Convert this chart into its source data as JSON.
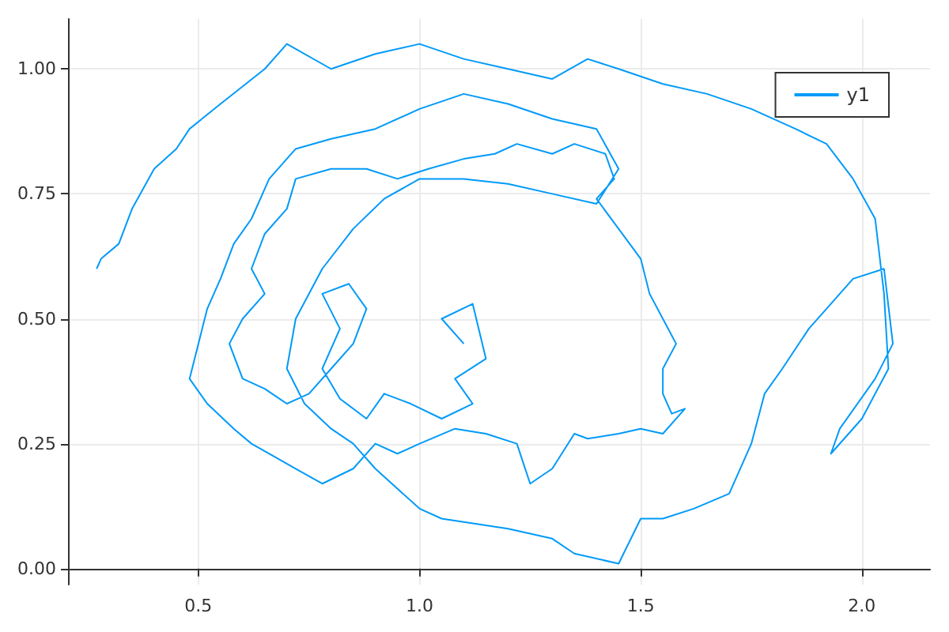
{
  "chart_data": {
    "type": "line",
    "grid": true,
    "legend": "top right",
    "marker": "none",
    "line_style": "solid",
    "xlim": [
      0.207,
      2.154
    ],
    "ylim": [
      -0.032,
      1.1
    ],
    "xticks": [
      {
        "value": 0.5,
        "label": "0.5"
      },
      {
        "value": 1,
        "label": "1.0"
      },
      {
        "value": 1.5,
        "label": "1.5"
      },
      {
        "value": 2,
        "label": "2.0"
      }
    ],
    "yticks": [
      {
        "value": 0,
        "label": "0.00"
      },
      {
        "value": 0.25,
        "label": "0.25"
      },
      {
        "value": 0.5,
        "label": "0.50"
      },
      {
        "value": 0.75,
        "label": "0.75"
      },
      {
        "value": 1,
        "label": "1.00"
      }
    ],
    "series": [
      {
        "name": "y1",
        "color": "#009af9",
        "x": [
          1.1,
          1.05,
          1.12,
          1.15,
          1.08,
          1.12,
          1.05,
          0.98,
          0.92,
          0.88,
          0.82,
          0.78,
          0.82,
          0.78,
          0.84,
          0.88,
          0.85,
          0.8,
          0.75,
          0.7,
          0.65,
          0.6,
          0.57,
          0.6,
          0.65,
          0.62,
          0.65,
          0.7,
          0.72,
          0.8,
          0.88,
          0.95,
          1.02,
          1.1,
          1.17,
          1.22,
          1.3,
          1.35,
          1.42,
          1.44,
          1.4,
          1.45,
          1.5,
          1.52,
          1.55,
          1.58,
          1.55,
          1.55,
          1.57,
          1.6,
          1.55,
          1.5,
          1.45,
          1.38,
          1.35,
          1.3,
          1.25,
          1.22,
          1.15,
          1.08,
          1.0,
          0.95,
          0.9,
          0.85,
          0.78,
          0.72,
          0.68,
          0.62,
          0.58,
          0.52,
          0.48,
          0.5,
          0.52,
          0.55,
          0.58,
          0.62,
          0.66,
          0.72,
          0.8,
          0.9,
          1.0,
          1.1,
          1.2,
          1.3,
          1.4,
          1.45,
          1.4,
          1.3,
          1.2,
          1.1,
          1.0,
          0.92,
          0.85,
          0.78,
          0.72,
          0.7,
          0.74,
          0.8,
          0.85,
          0.9,
          1.0,
          1.05,
          1.2,
          1.3,
          1.35,
          1.45,
          1.5,
          1.55,
          1.62,
          1.7,
          1.75,
          1.78,
          1.82,
          1.88,
          1.92,
          1.95,
          1.98,
          2.05,
          2.07,
          2.03,
          1.95,
          1.93,
          2.0,
          2.06,
          2.05,
          2.03,
          1.98,
          1.92,
          1.85,
          1.75,
          1.65,
          1.55,
          1.45,
          1.38,
          1.3,
          1.2,
          1.1,
          1.0,
          0.9,
          0.8,
          0.7,
          0.65,
          0.55,
          0.48,
          0.45,
          0.4,
          0.35,
          0.32,
          0.28,
          0.27
        ],
        "values": [
          0.45,
          0.5,
          0.53,
          0.42,
          0.38,
          0.33,
          0.3,
          0.33,
          0.35,
          0.3,
          0.34,
          0.4,
          0.48,
          0.55,
          0.57,
          0.52,
          0.45,
          0.4,
          0.35,
          0.33,
          0.36,
          0.38,
          0.45,
          0.5,
          0.55,
          0.6,
          0.67,
          0.72,
          0.78,
          0.8,
          0.8,
          0.78,
          0.8,
          0.82,
          0.83,
          0.85,
          0.83,
          0.85,
          0.83,
          0.78,
          0.74,
          0.68,
          0.62,
          0.55,
          0.5,
          0.45,
          0.4,
          0.35,
          0.31,
          0.32,
          0.27,
          0.28,
          0.27,
          0.26,
          0.27,
          0.2,
          0.17,
          0.25,
          0.27,
          0.28,
          0.25,
          0.23,
          0.25,
          0.2,
          0.17,
          0.2,
          0.22,
          0.25,
          0.28,
          0.33,
          0.38,
          0.45,
          0.52,
          0.58,
          0.65,
          0.7,
          0.78,
          0.84,
          0.86,
          0.88,
          0.92,
          0.95,
          0.93,
          0.9,
          0.88,
          0.8,
          0.73,
          0.75,
          0.77,
          0.78,
          0.78,
          0.74,
          0.68,
          0.6,
          0.5,
          0.4,
          0.33,
          0.28,
          0.25,
          0.2,
          0.12,
          0.1,
          0.08,
          0.06,
          0.03,
          0.01,
          0.1,
          0.1,
          0.12,
          0.15,
          0.25,
          0.35,
          0.4,
          0.48,
          0.52,
          0.55,
          0.58,
          0.6,
          0.45,
          0.38,
          0.28,
          0.23,
          0.3,
          0.4,
          0.55,
          0.7,
          0.78,
          0.85,
          0.88,
          0.92,
          0.95,
          0.97,
          1.0,
          1.02,
          0.98,
          1.0,
          1.02,
          1.05,
          1.03,
          1.0,
          1.05,
          1.0,
          0.93,
          0.88,
          0.84,
          0.8,
          0.72,
          0.65,
          0.62,
          0.6
        ]
      }
    ]
  }
}
